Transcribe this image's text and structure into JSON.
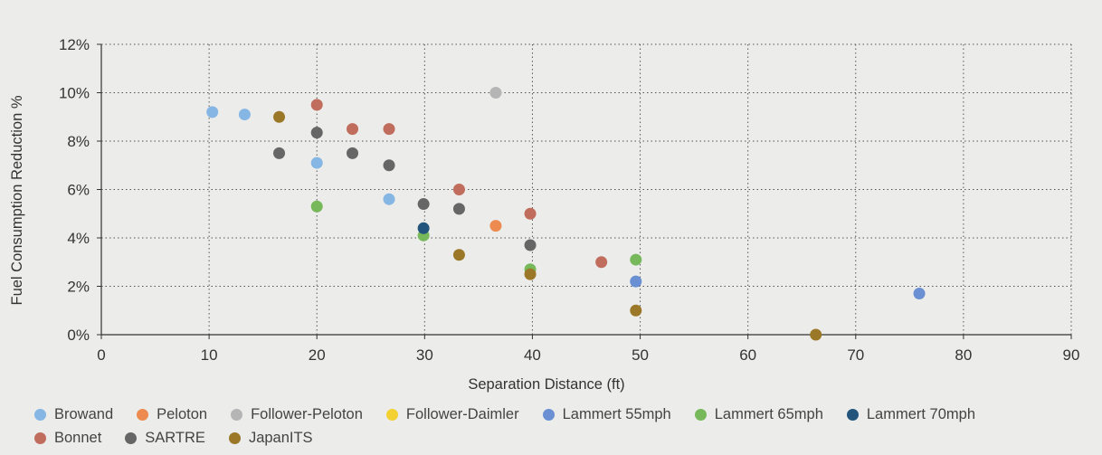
{
  "chart_data": {
    "type": "scatter",
    "title": "",
    "xlabel": "Separation Distance (ft)",
    "ylabel": "Fuel Consumption Reduction %",
    "xlim": [
      0,
      90
    ],
    "ylim": [
      0,
      12
    ],
    "x_ticks": [
      "0",
      "10",
      "20",
      "30",
      "40",
      "50",
      "60",
      "70",
      "80",
      "90"
    ],
    "y_ticks": [
      "0%",
      "2%",
      "4%",
      "6%",
      "8%",
      "10%",
      "12%"
    ],
    "grid": true,
    "legend_position": "bottom",
    "series": [
      {
        "name": "Browand",
        "color": "#86b6e3",
        "points": [
          [
            10.3,
            9.2
          ],
          [
            13.3,
            9.1
          ],
          [
            20.0,
            7.1
          ],
          [
            26.7,
            5.6
          ]
        ]
      },
      {
        "name": "Peloton",
        "color": "#ec8a4f",
        "points": [
          [
            36.6,
            4.5
          ]
        ]
      },
      {
        "name": "Follower-Peloton",
        "color": "#b5b5b5",
        "points": [
          [
            36.6,
            10.0
          ]
        ]
      },
      {
        "name": "Follower-Daimler",
        "color": "#f2d130",
        "points": []
      },
      {
        "name": "Lammert 55mph",
        "color": "#6a8fd3",
        "points": [
          [
            49.6,
            2.2
          ],
          [
            75.9,
            1.7
          ]
        ]
      },
      {
        "name": "Lammert 65mph",
        "color": "#77b95a",
        "points": [
          [
            20.0,
            5.3
          ],
          [
            29.9,
            4.1
          ],
          [
            39.8,
            2.7
          ],
          [
            49.6,
            3.1
          ]
        ]
      },
      {
        "name": "Lammert 70mph",
        "color": "#23547c",
        "points": [
          [
            29.9,
            4.4
          ]
        ]
      },
      {
        "name": "Bonnet",
        "color": "#c06d5d",
        "points": [
          [
            20.0,
            9.5
          ],
          [
            23.3,
            8.5
          ],
          [
            26.7,
            8.5
          ],
          [
            33.2,
            6.0
          ],
          [
            39.8,
            5.0
          ],
          [
            46.4,
            3.0
          ]
        ]
      },
      {
        "name": "SARTRE",
        "color": "#666666",
        "points": [
          [
            16.5,
            7.5
          ],
          [
            20.0,
            8.35
          ],
          [
            23.3,
            7.5
          ],
          [
            26.7,
            7.0
          ],
          [
            29.9,
            5.4
          ],
          [
            33.2,
            5.2
          ],
          [
            39.8,
            3.7
          ]
        ]
      },
      {
        "name": "JapanITS",
        "color": "#9b7828",
        "points": [
          [
            16.5,
            9.0
          ],
          [
            33.2,
            3.3
          ],
          [
            39.8,
            2.5
          ],
          [
            49.6,
            1.0
          ],
          [
            66.3,
            0.0
          ]
        ]
      }
    ]
  }
}
